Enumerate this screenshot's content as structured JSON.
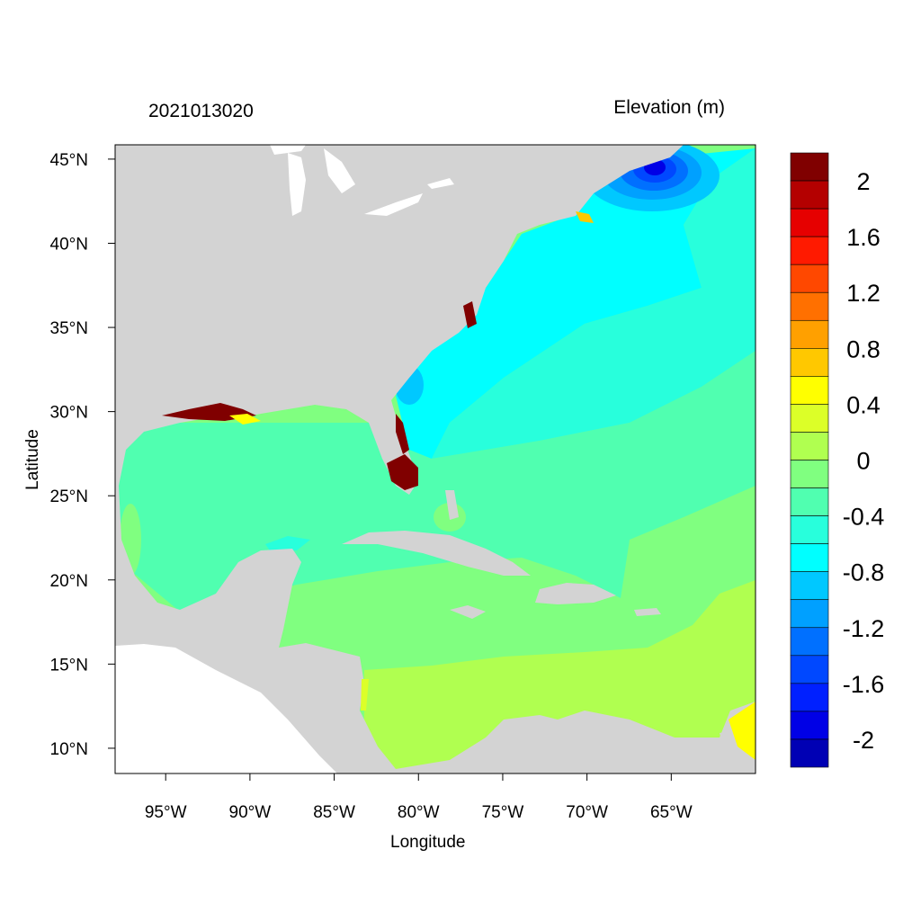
{
  "title_left": "2021013020",
  "title_right": "Elevation (m)",
  "xlabel": "Longitude",
  "ylabel": "Latitude",
  "map": {
    "lon_range": [
      -98,
      -60
    ],
    "lat_range": [
      8.5,
      45.85
    ],
    "land_color": "#d3d3d3",
    "unmodeled_ocean_color": "#ffffff",
    "lon_ticks": [
      {
        "value": -95,
        "label": "95°W"
      },
      {
        "value": -90,
        "label": "90°W"
      },
      {
        "value": -85,
        "label": "85°W"
      },
      {
        "value": -80,
        "label": "80°W"
      },
      {
        "value": -75,
        "label": "75°W"
      },
      {
        "value": -70,
        "label": "70°W"
      },
      {
        "value": -65,
        "label": "65°W"
      }
    ],
    "lat_ticks": [
      {
        "value": 10,
        "label": "10°N"
      },
      {
        "value": 15,
        "label": "15°N"
      },
      {
        "value": 20,
        "label": "20°N"
      },
      {
        "value": 25,
        "label": "25°N"
      },
      {
        "value": 30,
        "label": "30°N"
      },
      {
        "value": 35,
        "label": "35°N"
      },
      {
        "value": 40,
        "label": "40°N"
      },
      {
        "value": 45,
        "label": "45°N"
      }
    ]
  },
  "colorbar": {
    "colors": [
      "#800000",
      "#b40000",
      "#e60000",
      "#ff1a00",
      "#ff4800",
      "#ff7000",
      "#ffa000",
      "#ffc800",
      "#ffff00",
      "#dcff28",
      "#b0ff50",
      "#80ff80",
      "#50ffb0",
      "#28ffdc",
      "#00ffff",
      "#00c8ff",
      "#00a0ff",
      "#0070ff",
      "#0048ff",
      "#0020ff",
      "#0000e6",
      "#0000b4"
    ],
    "labels": [
      "2",
      "1.6",
      "1.2",
      "0.8",
      "0.4",
      "0",
      "-0.4",
      "-0.8",
      "-1.2",
      "-1.6",
      "-2"
    ]
  }
}
